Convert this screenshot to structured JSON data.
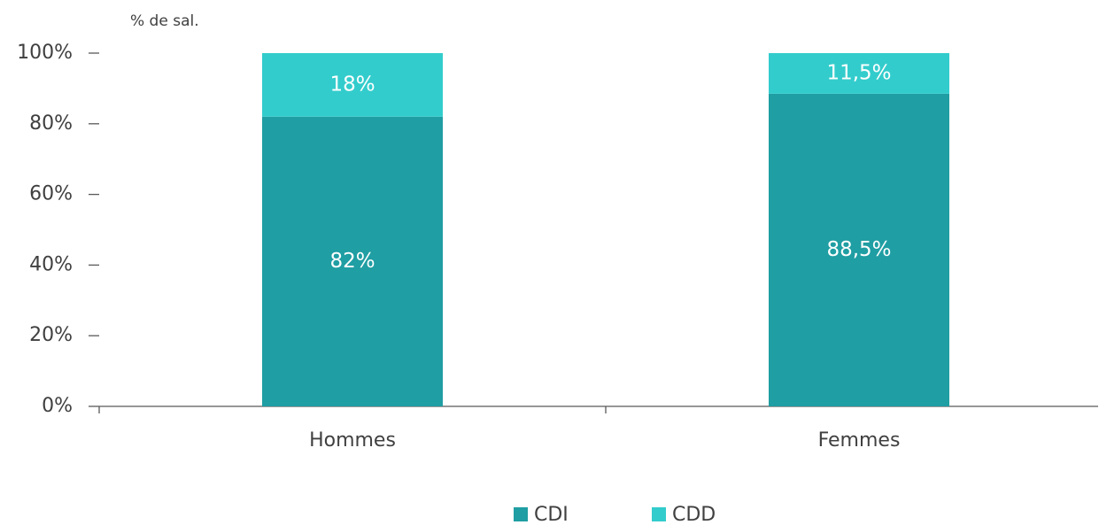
{
  "chart_data": {
    "type": "stacked_bar",
    "y_label": "% de sal.",
    "categories": [
      "Hommes",
      "Femmes"
    ],
    "series": [
      {
        "name": "CDI",
        "color": "#1f9ea3",
        "values": [
          82,
          88.5
        ],
        "value_labels": [
          "82%",
          "88,5%"
        ]
      },
      {
        "name": "CDD",
        "color": "#33cccc",
        "values": [
          18,
          11.5
        ],
        "value_labels": [
          "18%",
          "11,5%"
        ]
      }
    ],
    "ylim": [
      0,
      100
    ],
    "yticks": [
      {
        "value": 0,
        "label": "0%"
      },
      {
        "value": 20,
        "label": "20%"
      },
      {
        "value": 40,
        "label": "40%"
      },
      {
        "value": 60,
        "label": "60%"
      },
      {
        "value": 80,
        "label": "80%"
      },
      {
        "value": 100,
        "label": "100%"
      }
    ],
    "legend": "bottom"
  }
}
